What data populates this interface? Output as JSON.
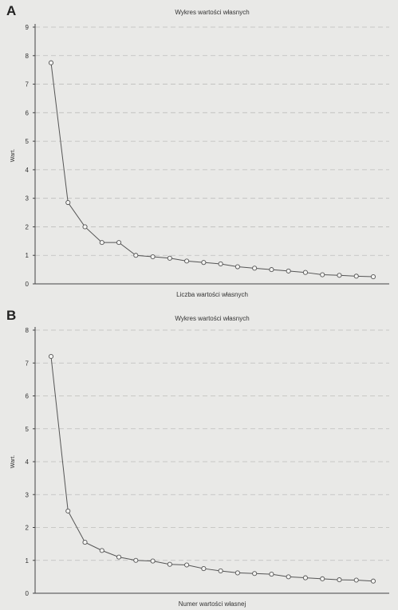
{
  "panels": [
    {
      "letter": "A",
      "chart_data": {
        "type": "line",
        "title": "Wykres wartości własnych",
        "xlabel": "Liczba wartości własnych",
        "ylabel": "Wart.",
        "ylim": [
          0,
          9
        ],
        "yticks": [
          0,
          1,
          2,
          3,
          4,
          5,
          6,
          7,
          8,
          9
        ],
        "grid": "dashed horizontal",
        "x": [
          1,
          2,
          3,
          4,
          5,
          6,
          7,
          8,
          9,
          10,
          11,
          12,
          13,
          14,
          15,
          16,
          17,
          18,
          19,
          20
        ],
        "series": [
          {
            "values": [
              7.75,
              2.85,
              2.0,
              1.45,
              1.45,
              1.0,
              0.95,
              0.9,
              0.8,
              0.75,
              0.7,
              0.6,
              0.55,
              0.5,
              0.45,
              0.4,
              0.32,
              0.3,
              0.27,
              0.25
            ]
          }
        ],
        "colors": {
          "line": "#555555",
          "marker_fill": "#f5f5f3",
          "grid": "#bdbdbb",
          "axis": "#444444"
        }
      }
    },
    {
      "letter": "B",
      "chart_data": {
        "type": "line",
        "title": "Wykres wartości własnych",
        "xlabel": "Numer wartości własnej",
        "ylabel": "Wart.",
        "ylim": [
          0,
          8
        ],
        "yticks": [
          0,
          1,
          2,
          3,
          4,
          5,
          6,
          7,
          8
        ],
        "grid": "dashed horizontal",
        "x": [
          1,
          2,
          3,
          4,
          5,
          6,
          7,
          8,
          9,
          10,
          11,
          12,
          13,
          14,
          15,
          16,
          17,
          18,
          19,
          20
        ],
        "series": [
          {
            "values": [
              7.2,
              2.5,
              1.55,
              1.3,
              1.1,
              1.0,
              0.98,
              0.88,
              0.86,
              0.75,
              0.68,
              0.62,
              0.6,
              0.58,
              0.5,
              0.47,
              0.44,
              0.41,
              0.4,
              0.37
            ]
          }
        ],
        "colors": {
          "line": "#555555",
          "marker_fill": "#f5f5f3",
          "grid": "#bdbdbb",
          "axis": "#444444"
        }
      }
    }
  ]
}
